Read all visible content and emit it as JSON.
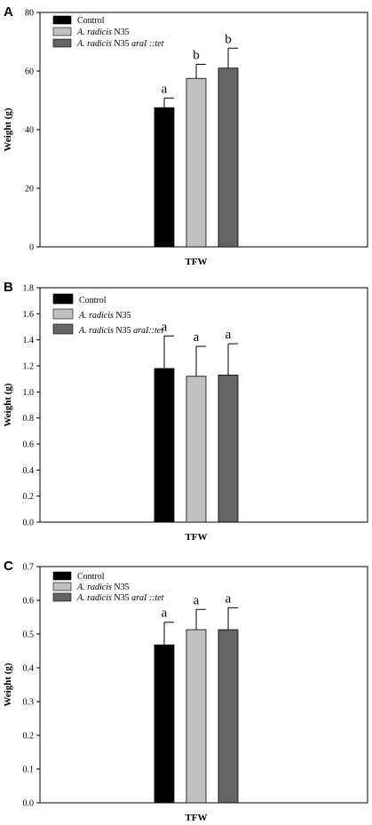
{
  "chart_data": [
    {
      "panel": "A",
      "type": "bar",
      "categories": [
        "TFW"
      ],
      "xlabel": "TFW",
      "ylabel": "Weight (g)",
      "ylim": [
        0,
        80
      ],
      "yticks": [
        "0",
        "20",
        "40",
        "60",
        "80"
      ],
      "series": [
        {
          "name": "Control",
          "values": [
            47.5
          ],
          "error": [
            3.3
          ],
          "color": "#000000",
          "letter": "a"
        },
        {
          "name_italic": "A. radicis",
          "name_rest": " N35",
          "values": [
            57.5
          ],
          "error": [
            4.8
          ],
          "color": "#c0c0c0",
          "letter": "b"
        },
        {
          "name_italic": "A. radicis",
          "name_rest": " N35 ",
          "name_italic2": "araI ::tet",
          "values": [
            61.0
          ],
          "error": [
            6.8
          ],
          "color": "#646464",
          "letter": "b"
        }
      ],
      "legend": "top-left",
      "grid": false
    },
    {
      "panel": "B",
      "type": "bar",
      "categories": [
        "TFW"
      ],
      "xlabel": "TFW",
      "ylabel": "Weight (g)",
      "ylim": [
        0,
        1.8
      ],
      "yticks": [
        "0.0",
        "0.2",
        "0.4",
        "0.6",
        "0.8",
        "1.0",
        "1.2",
        "1.4",
        "1.6",
        "1.8"
      ],
      "series": [
        {
          "name": "Control",
          "values": [
            1.18
          ],
          "error": [
            0.25
          ],
          "color": "#000000",
          "letter": "a"
        },
        {
          "name_italic": "A. radicis",
          "name_rest": " N35",
          "values": [
            1.12
          ],
          "error": [
            0.23
          ],
          "color": "#c0c0c0",
          "letter": "a"
        },
        {
          "name_italic": "A. radicis",
          "name_rest": " N35 ",
          "name_italic2": "araI::tet",
          "values": [
            1.13
          ],
          "error": [
            0.24
          ],
          "color": "#646464",
          "letter": "a"
        }
      ],
      "legend": "top-left",
      "grid": false
    },
    {
      "panel": "C",
      "type": "bar",
      "categories": [
        "TFW"
      ],
      "xlabel": "TFW",
      "ylabel": "Weight (g)",
      "ylim": [
        0,
        0.7
      ],
      "yticks": [
        "0.0",
        "0.1",
        "0.2",
        "0.3",
        "0.4",
        "0.5",
        "0.6",
        "0.7"
      ],
      "series": [
        {
          "name": "Control",
          "values": [
            0.468
          ],
          "error": [
            0.067
          ],
          "color": "#000000",
          "letter": "a"
        },
        {
          "name_italic": "A. radicis",
          "name_rest": " N35",
          "values": [
            0.513
          ],
          "error": [
            0.06
          ],
          "color": "#c0c0c0",
          "letter": "a"
        },
        {
          "name_italic": "A. radicis",
          "name_rest": " N35 ",
          "name_italic2": "araI ::tet",
          "values": [
            0.513
          ],
          "error": [
            0.065
          ],
          "color": "#646464",
          "letter": "a"
        }
      ],
      "legend": "top-left",
      "grid": false
    }
  ]
}
